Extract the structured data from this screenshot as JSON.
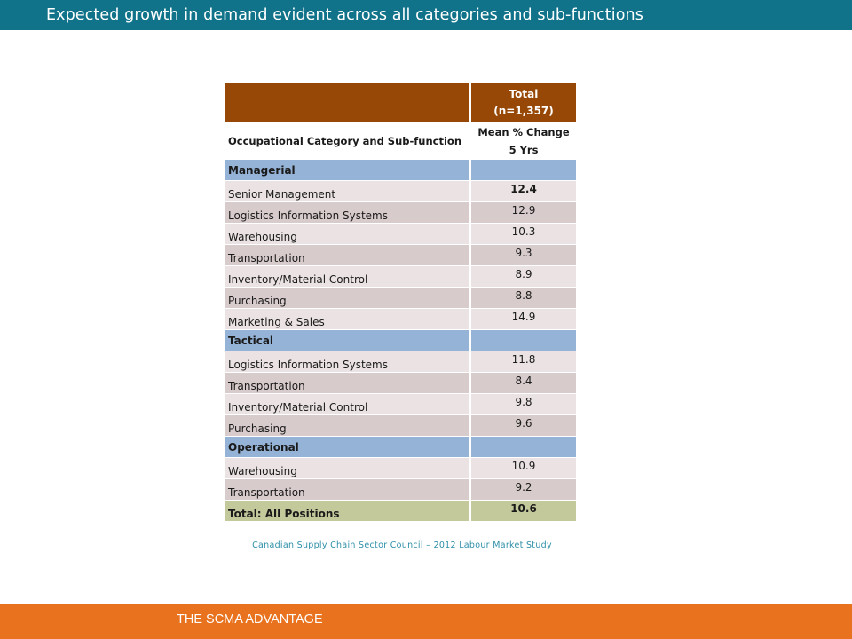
{
  "header": {
    "title": "Expected growth in demand evident across all categories and sub-functions"
  },
  "table": {
    "total_header_line1": "Total",
    "total_header_line2": "(n=1,357)",
    "col1_header": "Occupational Category and Sub-function",
    "col2_header_line1": "Mean % Change",
    "col2_header_line2": "5 Yrs",
    "rows": [
      {
        "label": "Managerial",
        "value": "",
        "type": "category"
      },
      {
        "label": "Senior Management",
        "value": "12.4",
        "type": "odd",
        "bold_value": true
      },
      {
        "label": "Logistics Information Systems",
        "value": "12.9",
        "type": "even"
      },
      {
        "label": "Warehousing",
        "value": "10.3",
        "type": "odd"
      },
      {
        "label": "Transportation",
        "value": "9.3",
        "type": "even"
      },
      {
        "label": "Inventory/Material Control",
        "value": "8.9",
        "type": "odd"
      },
      {
        "label": "Purchasing",
        "value": "8.8",
        "type": "even"
      },
      {
        "label": "Marketing & Sales",
        "value": "14.9",
        "type": "odd"
      },
      {
        "label": "Tactical",
        "value": "",
        "type": "category"
      },
      {
        "label": "Logistics Information Systems",
        "value": "11.8",
        "type": "odd"
      },
      {
        "label": "Transportation",
        "value": "8.4",
        "type": "even"
      },
      {
        "label": "Inventory/Material Control",
        "value": "9.8",
        "type": "odd"
      },
      {
        "label": "Purchasing",
        "value": "9.6",
        "type": "even"
      },
      {
        "label": "Operational",
        "value": "",
        "type": "category"
      },
      {
        "label": "Warehousing",
        "value": "10.9",
        "type": "odd"
      },
      {
        "label": "Transportation",
        "value": "9.2",
        "type": "even"
      },
      {
        "label": "Total: All Positions",
        "value": "10.6",
        "type": "total"
      }
    ]
  },
  "source_note": "Canadian Supply Chain Sector Council – 2012 Labour  Market Study",
  "footer": {
    "label": "THE SCMA ADVANTAGE"
  },
  "colors": {
    "title_bar": "#11738a",
    "footer_bar": "#e8721e",
    "table_header": "#974806",
    "category_row": "#95b3d7",
    "total_row": "#c4c99b"
  }
}
